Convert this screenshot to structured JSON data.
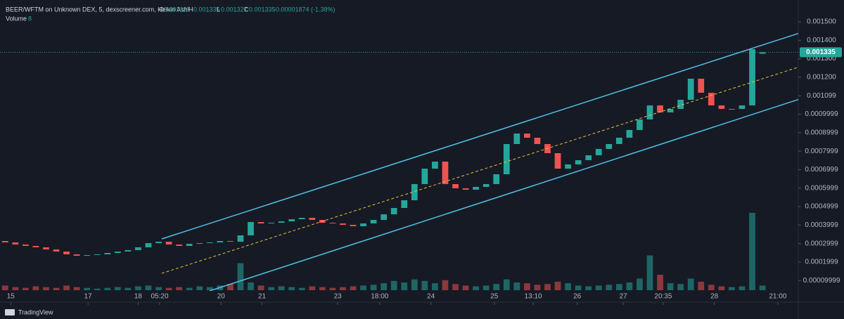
{
  "chart_data": {
    "type": "candlestick",
    "title": "BEER/WFTM on Unknown DEX, 5, dexscreener.com, Heikin Ashi",
    "legend": {
      "o_label": "O",
      "o": "0.001327",
      "h_label": "H",
      "h": "0.001335",
      "l_label": "L",
      "l": "0.001327",
      "c_label": "C",
      "c": "0.001335",
      "change": "-0.00001874 (-1.38%)",
      "volume_label": "Volume",
      "volume_length": "8"
    },
    "up_color": "#26a69a",
    "down_color": "#ef5350",
    "xlim": [
      -0.5,
      77.5
    ],
    "ylim": [
      5.13e-05,
      0.0016179
    ],
    "volume_ylim": [
      0,
      100
    ],
    "xticks": [
      {
        "value": 0.55,
        "label": "15"
      },
      {
        "value": 8.1,
        "label": "17"
      },
      {
        "value": 13.0,
        "label": "18"
      },
      {
        "value": 15.1,
        "label": "05:20"
      },
      {
        "value": 21.1,
        "label": "20"
      },
      {
        "value": 25.1,
        "label": "21"
      },
      {
        "value": 32.5,
        "label": "23"
      },
      {
        "value": 36.6,
        "label": "18:00"
      },
      {
        "value": 41.6,
        "label": "24"
      },
      {
        "value": 47.8,
        "label": "25"
      },
      {
        "value": 51.6,
        "label": "13:10"
      },
      {
        "value": 55.9,
        "label": "26"
      },
      {
        "value": 60.4,
        "label": "27"
      },
      {
        "value": 64.3,
        "label": "20:35"
      },
      {
        "value": 69.3,
        "label": "28"
      },
      {
        "value": 75.5,
        "label": "21:00"
      }
    ],
    "yticks": [
      {
        "value": 0.0015,
        "label": "0.001500"
      },
      {
        "value": 0.0014,
        "label": "0.001400"
      },
      {
        "value": 0.0013,
        "label": "0.001300"
      },
      {
        "value": 0.0012,
        "label": "0.001200"
      },
      {
        "value": 0.001099,
        "label": "0.001099"
      },
      {
        "value": 0.0009999,
        "label": "0.0009999"
      },
      {
        "value": 0.0008999,
        "label": "0.0008999"
      },
      {
        "value": 0.0007999,
        "label": "0.0007999"
      },
      {
        "value": 0.0006999,
        "label": "0.0006999"
      },
      {
        "value": 0.0005999,
        "label": "0.0005999"
      },
      {
        "value": 0.0004999,
        "label": "0.0004999"
      },
      {
        "value": 0.0003999,
        "label": "0.0003999"
      },
      {
        "value": 0.0002999,
        "label": "0.0002999"
      },
      {
        "value": 0.0001999,
        "label": "0.0001999"
      },
      {
        "value": 9.999e-05,
        "label": "0.00009999"
      }
    ],
    "open": [
      0.0003137,
      0.0003061,
      0.0002947,
      0.0002871,
      0.0002795,
      0.0002681,
      0.0002566,
      0.0002414,
      0.0002338,
      0.0002376,
      0.0002414,
      0.000249,
      0.0002566,
      0.0002643,
      0.0002795,
      0.0003023,
      0.0003099,
      0.0002947,
      0.0002871,
      0.0002985,
      0.0003023,
      0.0003061,
      0.0003137,
      0.0003099,
      0.0003441,
      0.0004163,
      0.0004087,
      0.0004125,
      0.0004201,
      0.0004316,
      0.0004392,
      0.0004278,
      0.0004125,
      0.0004087,
      0.0004011,
      0.0003935,
      0.0004087,
      0.0004278,
      0.0004582,
      0.0004924,
      0.0005342,
      0.0006217,
      0.0007053,
      0.0007433,
      0.0006217,
      0.0005989,
      0.0005913,
      0.0006065,
      0.0006217,
      0.0006749,
      0.0008384,
      0.0008954,
      0.0008726,
      0.0008384,
      0.000789,
      0.0007053,
      0.0007281,
      0.0007509,
      0.0007776,
      0.0008118,
      0.0008384,
      0.0008726,
      0.0009144,
      0.0009715,
      0.0010475,
      0.0010095,
      0.0010285,
      0.0010779,
      0.001192,
      0.001116,
      0.0010475,
      0.0010285,
      0.0010285,
      0.0010475,
      0.001327
    ],
    "close": [
      0.0003061,
      0.0002947,
      0.0002871,
      0.0002795,
      0.0002681,
      0.0002566,
      0.0002414,
      0.0002338,
      0.0002376,
      0.0002414,
      0.000249,
      0.0002566,
      0.0002643,
      0.0002795,
      0.0003023,
      0.0003099,
      0.0002947,
      0.0002871,
      0.0002985,
      0.0003023,
      0.0003061,
      0.0003137,
      0.0003099,
      0.0003441,
      0.0004163,
      0.0004087,
      0.0004125,
      0.0004201,
      0.0004316,
      0.0004392,
      0.0004278,
      0.0004125,
      0.0004087,
      0.0004011,
      0.0003935,
      0.0004087,
      0.0004278,
      0.0004582,
      0.0004924,
      0.0005342,
      0.0006217,
      0.0007053,
      0.0007433,
      0.0006217,
      0.0005989,
      0.0005913,
      0.0006065,
      0.0006217,
      0.0006749,
      0.0008384,
      0.0008954,
      0.0008726,
      0.0008384,
      0.000789,
      0.0007053,
      0.0007281,
      0.0007509,
      0.0007776,
      0.0008118,
      0.0008384,
      0.0008726,
      0.0009144,
      0.0009715,
      0.0010475,
      0.0010095,
      0.0010285,
      0.0010779,
      0.001192,
      0.001116,
      0.0010475,
      0.0010285,
      0.0010285,
      0.0010475,
      0.0013517,
      0.001335
    ],
    "volume": [
      6,
      4,
      3,
      5,
      4,
      3,
      6,
      4,
      3,
      2,
      3,
      4,
      3,
      5,
      6,
      4,
      3,
      4,
      3,
      5,
      4,
      6,
      8,
      35,
      10,
      6,
      4,
      5,
      4,
      3,
      5,
      4,
      3,
      4,
      5,
      6,
      7,
      9,
      12,
      10,
      14,
      12,
      9,
      13,
      8,
      6,
      5,
      6,
      8,
      14,
      10,
      9,
      7,
      8,
      11,
      9,
      6,
      5,
      6,
      7,
      8,
      10,
      15,
      45,
      20,
      9,
      8,
      15,
      11,
      7,
      5,
      4,
      5,
      100,
      6
    ]
  }
}
